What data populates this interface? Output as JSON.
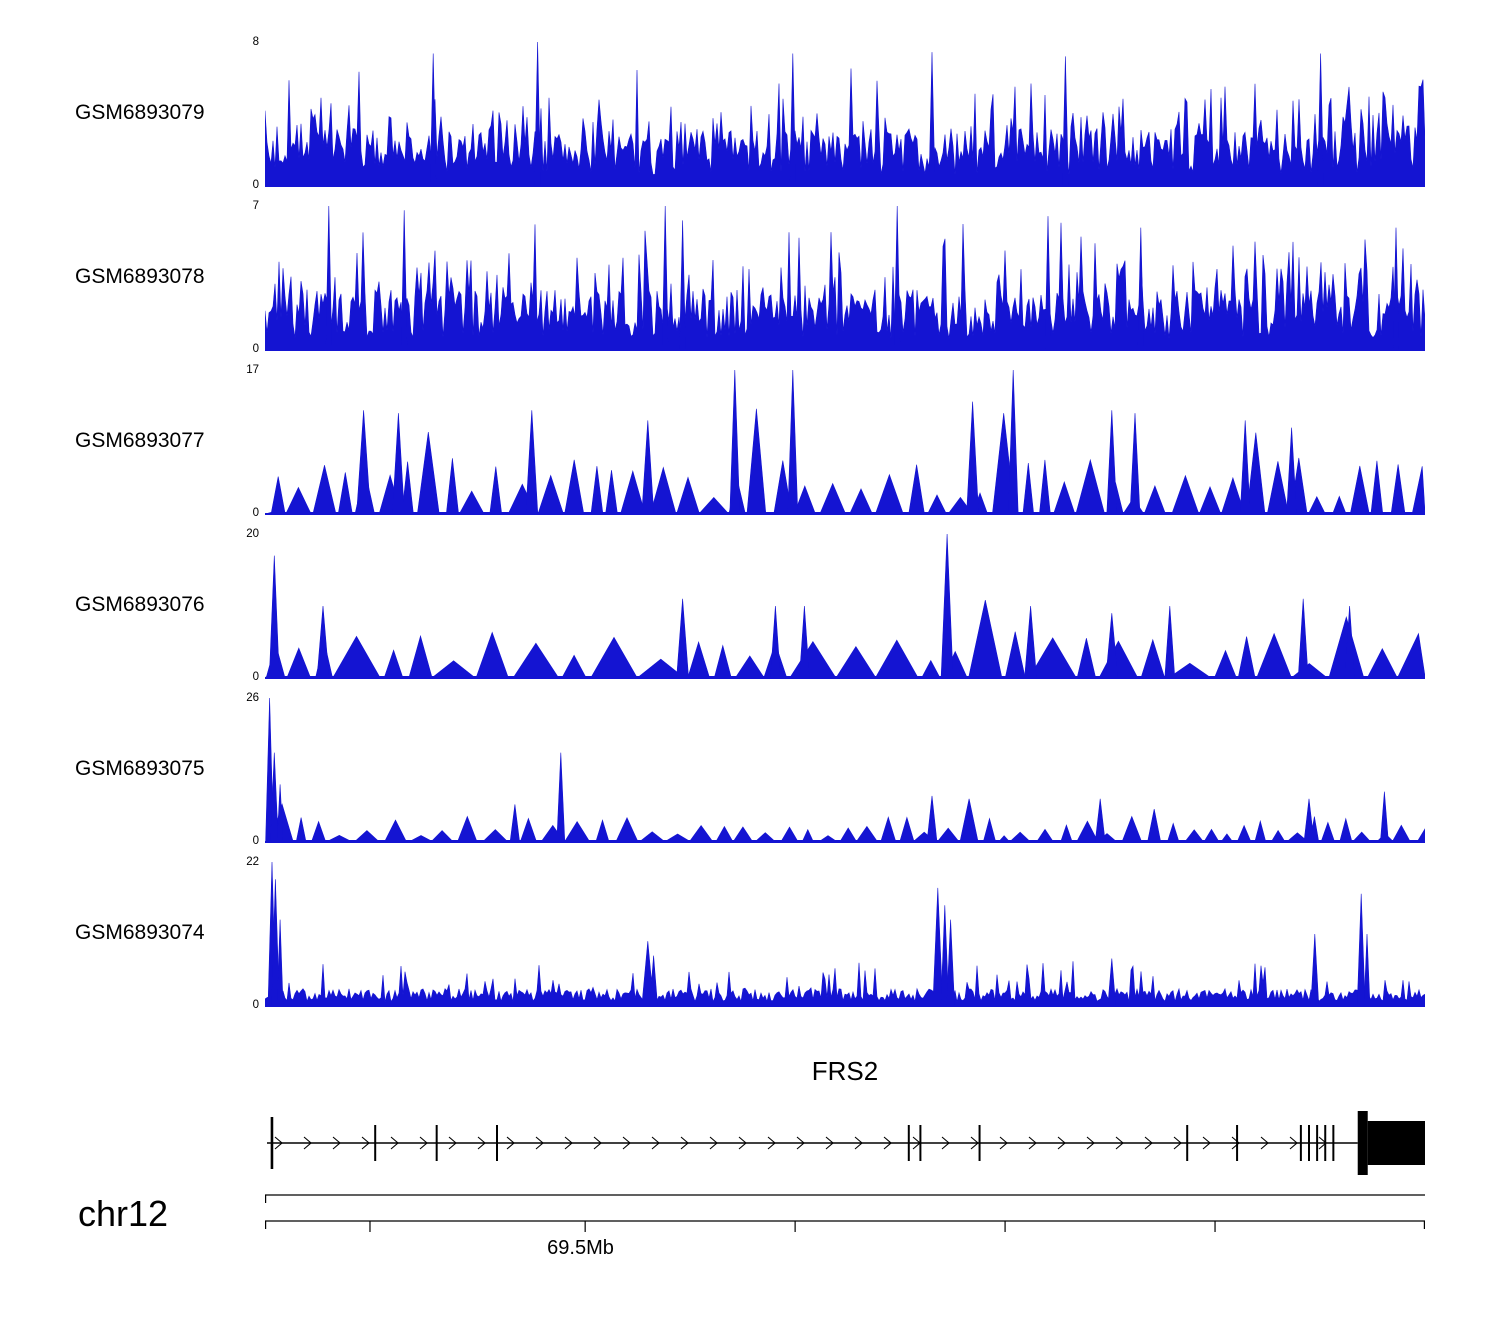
{
  "chart_data": {
    "type": "area",
    "title": "",
    "description": "Genome browser read-coverage tracks over the FRS2 locus on chr12 (~69.5Mb) for six GEO samples; blue filled signal, per-track y-axis from 0 to max.",
    "signal_color": "#1414d2",
    "gene_color": "#000000",
    "tracks": [
      {
        "label": "GSM6893079",
        "ymin": 0,
        "ymax": 8,
        "ylim": [
          0,
          8
        ],
        "style": "dense",
        "seed": 7,
        "step": 2,
        "base": 0.08,
        "var": 0.32,
        "spike_prob": 0.25,
        "spike_amp": 0.45,
        "features": [
          {
            "x": 0.235,
            "h": 1.0,
            "w": 3
          },
          {
            "x": 0.145,
            "h": 0.92,
            "w": 3
          },
          {
            "x": 0.455,
            "h": 0.92,
            "w": 3
          },
          {
            "x": 0.575,
            "h": 0.93,
            "w": 3
          },
          {
            "x": 0.69,
            "h": 0.9,
            "w": 3
          },
          {
            "x": 0.91,
            "h": 0.92,
            "w": 3
          }
        ]
      },
      {
        "label": "GSM6893078",
        "ymin": 0,
        "ymax": 7,
        "ylim": [
          0,
          7
        ],
        "style": "dense",
        "seed": 13,
        "step": 2,
        "base": 0.08,
        "var": 0.34,
        "spike_prob": 0.28,
        "spike_amp": 0.5,
        "features": [
          {
            "x": 0.055,
            "h": 1.0,
            "w": 3
          },
          {
            "x": 0.12,
            "h": 0.97,
            "w": 3
          },
          {
            "x": 0.345,
            "h": 1.0,
            "w": 3
          },
          {
            "x": 0.36,
            "h": 0.9,
            "w": 3
          },
          {
            "x": 0.545,
            "h": 1.0,
            "w": 3
          },
          {
            "x": 0.675,
            "h": 0.93,
            "w": 3
          },
          {
            "x": 0.755,
            "h": 0.85,
            "w": 3
          },
          {
            "x": 0.975,
            "h": 0.85,
            "w": 3
          }
        ]
      },
      {
        "label": "GSM6893077",
        "ymin": 0,
        "ymax": 17,
        "ylim": [
          0,
          17
        ],
        "style": "triangle",
        "seed": 17,
        "gap_min": 1,
        "gap_var": 8,
        "w_min": 10,
        "w_var": 18,
        "h_base": 0.1,
        "h_var": 0.3,
        "big_prob": 0.1,
        "big_min": 0.5,
        "big_var": 0.3,
        "features": [
          {
            "x": 0.405,
            "h": 1.0,
            "w": 5
          },
          {
            "x": 0.455,
            "h": 1.0,
            "w": 5
          },
          {
            "x": 0.645,
            "h": 1.0,
            "w": 5
          },
          {
            "x": 0.085,
            "h": 0.72,
            "w": 7
          },
          {
            "x": 0.115,
            "h": 0.7,
            "w": 6
          },
          {
            "x": 0.23,
            "h": 0.72,
            "w": 6
          },
          {
            "x": 0.33,
            "h": 0.65,
            "w": 6
          },
          {
            "x": 0.61,
            "h": 0.78,
            "w": 6
          },
          {
            "x": 0.73,
            "h": 0.72,
            "w": 5
          },
          {
            "x": 0.75,
            "h": 0.7,
            "w": 5
          },
          {
            "x": 0.845,
            "h": 0.65,
            "w": 5
          },
          {
            "x": 0.885,
            "h": 0.6,
            "w": 5
          }
        ]
      },
      {
        "label": "GSM6893076",
        "ymin": 0,
        "ymax": 20,
        "ylim": [
          0,
          20
        ],
        "style": "triangle",
        "seed": 23,
        "gap_min": 1,
        "gap_var": 6,
        "w_min": 16,
        "w_var": 30,
        "h_base": 0.08,
        "h_var": 0.25,
        "big_prob": 0.05,
        "big_min": 0.4,
        "big_var": 0.2,
        "features": [
          {
            "x": 0.008,
            "h": 0.85,
            "w": 5
          },
          {
            "x": 0.588,
            "h": 1.0,
            "w": 6
          },
          {
            "x": 0.05,
            "h": 0.5,
            "w": 6
          },
          {
            "x": 0.36,
            "h": 0.55,
            "w": 6
          },
          {
            "x": 0.44,
            "h": 0.5,
            "w": 5
          },
          {
            "x": 0.465,
            "h": 0.5,
            "w": 5
          },
          {
            "x": 0.66,
            "h": 0.5,
            "w": 6
          },
          {
            "x": 0.73,
            "h": 0.45,
            "w": 6
          },
          {
            "x": 0.78,
            "h": 0.5,
            "w": 5
          },
          {
            "x": 0.895,
            "h": 0.55,
            "w": 5
          },
          {
            "x": 0.935,
            "h": 0.5,
            "w": 5
          }
        ]
      },
      {
        "label": "GSM6893075",
        "ymin": 0,
        "ymax": 26,
        "ylim": [
          0,
          26
        ],
        "style": "triangle",
        "seed": 31,
        "gap_min": 1,
        "gap_var": 8,
        "w_min": 8,
        "w_var": 16,
        "h_base": 0.04,
        "h_var": 0.14,
        "big_prob": 0.05,
        "big_min": 0.2,
        "big_var": 0.15,
        "features": [
          {
            "x": 0.004,
            "h": 1.0,
            "w": 4
          },
          {
            "x": 0.008,
            "h": 0.62,
            "w": 4
          },
          {
            "x": 0.013,
            "h": 0.4,
            "w": 3
          },
          {
            "x": 0.255,
            "h": 0.62,
            "w": 4
          },
          {
            "x": 0.575,
            "h": 0.32,
            "w": 5
          },
          {
            "x": 0.72,
            "h": 0.3,
            "w": 5
          },
          {
            "x": 0.9,
            "h": 0.3,
            "w": 5
          },
          {
            "x": 0.965,
            "h": 0.35,
            "w": 4
          }
        ]
      },
      {
        "label": "GSM6893074",
        "ymin": 0,
        "ymax": 22,
        "ylim": [
          0,
          22
        ],
        "style": "dense",
        "seed": 29,
        "step": 2,
        "base": 0.03,
        "var": 0.09,
        "spike_prob": 0.15,
        "spike_amp": 0.2,
        "features": [
          {
            "x": 0.006,
            "h": 1.0,
            "w": 4
          },
          {
            "x": 0.009,
            "h": 0.88,
            "w": 4
          },
          {
            "x": 0.013,
            "h": 0.6,
            "w": 3
          },
          {
            "x": 0.33,
            "h": 0.45,
            "w": 6
          },
          {
            "x": 0.335,
            "h": 0.35,
            "w": 4
          },
          {
            "x": 0.58,
            "h": 0.82,
            "w": 5
          },
          {
            "x": 0.586,
            "h": 0.7,
            "w": 4
          },
          {
            "x": 0.591,
            "h": 0.6,
            "w": 4
          },
          {
            "x": 0.73,
            "h": 0.33,
            "w": 4
          },
          {
            "x": 0.905,
            "h": 0.5,
            "w": 4
          },
          {
            "x": 0.945,
            "h": 0.78,
            "w": 4
          },
          {
            "x": 0.95,
            "h": 0.5,
            "w": 3
          }
        ]
      }
    ],
    "gene": {
      "name": "FRS2",
      "chrom": "chr12",
      "strand": "+",
      "exons": [
        {
          "x": 0.006,
          "tall": true
        },
        {
          "x": 0.095
        },
        {
          "x": 0.148
        },
        {
          "x": 0.2
        },
        {
          "x": 0.555
        },
        {
          "x": 0.565
        },
        {
          "x": 0.616
        },
        {
          "x": 0.795
        },
        {
          "x": 0.838
        },
        {
          "x": 0.893
        },
        {
          "x": 0.9
        },
        {
          "x": 0.907
        },
        {
          "x": 0.914
        },
        {
          "x": 0.921
        }
      ],
      "big_exon_start": 0.942
    },
    "ruler": {
      "label": "69.5Mb",
      "label_tick_index": 1,
      "ticks": [
        0.0905,
        0.276,
        0.457,
        0.638,
        0.819
      ]
    }
  }
}
